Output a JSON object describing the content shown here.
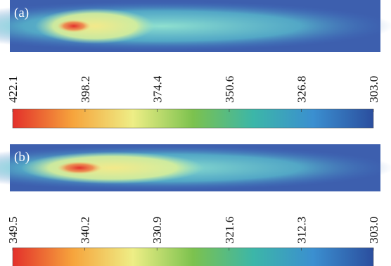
{
  "chart_data": [
    {
      "type": "heatmap",
      "label": "(a)",
      "colormap": [
        "#e3302b",
        "#f6a43c",
        "#eeee86",
        "#7cc24e",
        "#3cb6a8",
        "#3b8fd0",
        "#2b4e9e"
      ],
      "clim": [
        422.1,
        {
          "value": 303,
          "label": "303.0"
        }
      ],
      "cticks": [
        422.1,
        398.2,
        374.4,
        350.6,
        326.8,
        {
          "value": 303,
          "label": "303.0"
        }
      ]
    },
    {
      "type": "heatmap",
      "label": "(b)",
      "colormap": [
        "#e3302b",
        "#f6a43c",
        "#eeee86",
        "#7cc24e",
        "#3cb6a8",
        "#3b8fd0",
        "#2b4e9e"
      ],
      "clim": [
        349.5,
        {
          "value": 303,
          "label": "303.0"
        }
      ],
      "cticks": [
        349.5,
        340.2,
        330.9,
        321.6,
        312.3,
        {
          "value": 303,
          "label": "303.0"
        }
      ]
    }
  ]
}
